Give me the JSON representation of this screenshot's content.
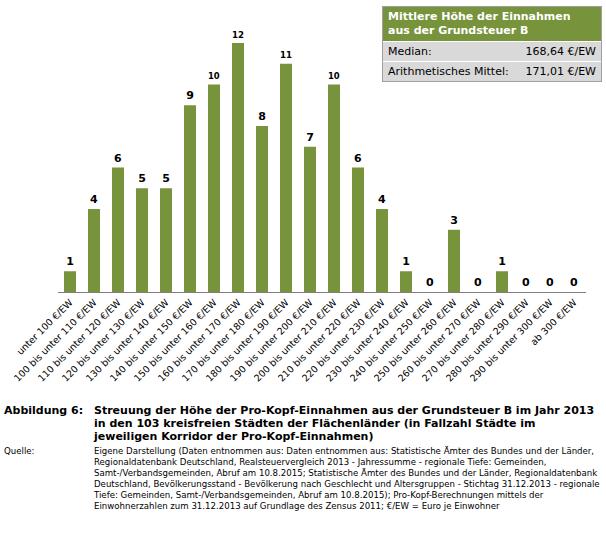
{
  "chart_data": {
    "type": "bar",
    "categories": [
      "unter 100 €/EW",
      "100 bis unter 110 €/EW",
      "110 bis unter 120 €/EW",
      "120 bis unter 130 €/EW",
      "130 bis unter 140 €/EW",
      "140 bis unter 150 €/EW",
      "150 bis unter 160 €/EW",
      "160 bis unter 170 €/EW",
      "170 bis unter 180 €/EW",
      "180 bis unter 190 €/EW",
      "190 bis unter 200 €/EW",
      "200 bis unter 210 €/EW",
      "210 bis unter 220 €/EW",
      "220 bis unter 230 €/EW",
      "230 bis unter 240 €/EW",
      "240 bis unter 250 €/EW",
      "250 bis unter 260 €/EW",
      "260 bis unter 270 €/EW",
      "270 bis unter 280 €/EW",
      "280 bis unter 290 €/EW",
      "290 bis unter 300 €/EW",
      "ab 300 €/EW"
    ],
    "values": [
      1,
      4,
      6,
      5,
      5,
      9,
      10,
      12,
      8,
      11,
      7,
      10,
      6,
      4,
      1,
      0,
      3,
      0,
      1,
      0,
      0,
      0
    ],
    "color": "#77933c",
    "data_labels": true,
    "tick_labels": "x",
    "grid": false
  },
  "info_box": {
    "title": "Mittlere Höhe der Einnahmen aus der Grundsteuer B",
    "rows": [
      [
        "Median:",
        "168,64 €/EW"
      ],
      [
        "Arithmetisches Mittel:",
        "171,01 €/EW"
      ]
    ]
  },
  "caption": {
    "label": "Abbildung 6:",
    "text": "Streuung der Höhe der Pro-Kopf-Einnahmen aus der Grundsteuer B im Jahr 2013 in den 103 kreisfreien Städten der Flächenländer (in Fallzahl Städte im jeweiligen Korridor der Pro-Kopf-Einnahmen)"
  },
  "source": {
    "label": "Quelle:",
    "text": "Eigene Darstellung (Daten entnommen aus: Daten entnommen aus: Statistische Ämter des Bundes und der Länder, Regionaldatenbank Deutschland, Realsteuervergleich 2013 - Jahressumme - regionale Tiefe: Gemeinden, Samt-/Verbandsgemeinden, Abruf am 10.8.2015; Statistische Ämter des Bundes und der Länder, Regionaldatenbank Deutschland, Bevölkerungsstand - Bevölkerung nach Geschlecht und Altersgruppen - Stichtag 31.12.2013 - regionale Tiefe: Gemeinden, Samt-/Verbandsgemeinden, Abruf am 10.8.2015); Pro-Kopf-Berechnungen mittels der Einwohnerzahlen zum 31.12.2013 auf Grundlage des Zensus 2011; €/EW = Euro je Einwohner"
  }
}
